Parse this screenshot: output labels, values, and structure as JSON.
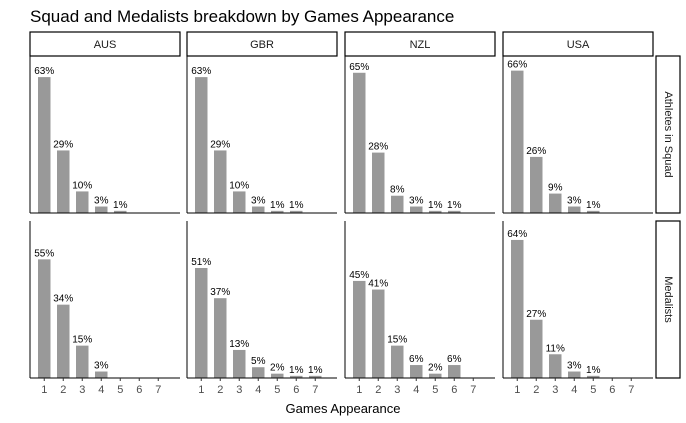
{
  "chart_data": {
    "type": "bar",
    "title": "Squad and Medalists breakdown by Games Appearance",
    "xlabel": "Games Appearance",
    "ylabel": "",
    "categories": [
      "1",
      "2",
      "3",
      "4",
      "5",
      "6",
      "7"
    ],
    "columns": [
      "AUS",
      "GBR",
      "NZL",
      "USA"
    ],
    "rows": [
      "Athletes in Squad",
      "Medalists"
    ],
    "value_unit": "%",
    "colors": {
      "bar": "#999999",
      "strip_border": "#000000",
      "axis": "#000000"
    },
    "grid": false,
    "ylim": [
      0,
      70
    ],
    "panels": [
      {
        "row": "Athletes in Squad",
        "column": "AUS",
        "values": [
          63,
          29,
          10,
          3,
          1,
          null,
          null
        ]
      },
      {
        "row": "Athletes in Squad",
        "column": "GBR",
        "values": [
          63,
          29,
          10,
          3,
          1,
          1,
          null
        ]
      },
      {
        "row": "Athletes in Squad",
        "column": "NZL",
        "values": [
          65,
          28,
          8,
          3,
          1,
          1,
          null
        ]
      },
      {
        "row": "Athletes in Squad",
        "column": "USA",
        "values": [
          66,
          26,
          9,
          3,
          1,
          null,
          null
        ]
      },
      {
        "row": "Medalists",
        "column": "AUS",
        "values": [
          55,
          34,
          15,
          3,
          null,
          null,
          null
        ]
      },
      {
        "row": "Medalists",
        "column": "GBR",
        "values": [
          51,
          37,
          13,
          5,
          2,
          1,
          1
        ]
      },
      {
        "row": "Medalists",
        "column": "NZL",
        "values": [
          45,
          41,
          15,
          6,
          2,
          6,
          null
        ]
      },
      {
        "row": "Medalists",
        "column": "USA",
        "values": [
          64,
          27,
          11,
          3,
          1,
          null,
          null
        ]
      }
    ]
  }
}
